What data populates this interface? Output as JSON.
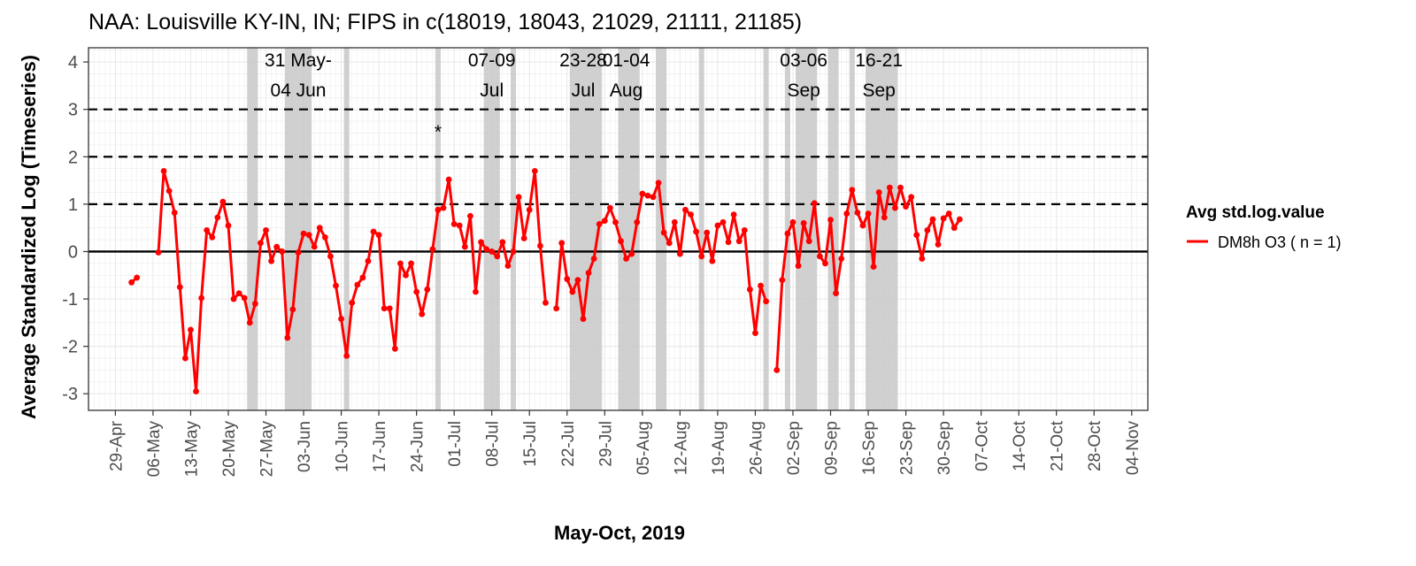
{
  "chart_data": {
    "type": "line",
    "title": "NAA: Louisville KY-IN, IN; FIPS in c(18019, 18043, 21029, 21111, 21185)",
    "xlabel": "May-Oct, 2019",
    "ylabel": "Average Standardized Log (Timeseries)",
    "xlim": [
      "2019-04-24",
      "2019-11-07"
    ],
    "ylim": [
      -3.35,
      4.3
    ],
    "x_ticks": [
      "29-Apr",
      "06-May",
      "13-May",
      "20-May",
      "27-May",
      "03-Jun",
      "10-Jun",
      "17-Jun",
      "24-Jun",
      "01-Jul",
      "08-Jul",
      "15-Jul",
      "22-Jul",
      "29-Jul",
      "05-Aug",
      "12-Aug",
      "19-Aug",
      "26-Aug",
      "02-Sep",
      "09-Sep",
      "16-Sep",
      "23-Sep",
      "30-Sep",
      "07-Oct",
      "14-Oct",
      "21-Oct",
      "28-Oct",
      "04-Nov"
    ],
    "x_tick_dates": [
      "2019-04-29",
      "2019-05-06",
      "2019-05-13",
      "2019-05-20",
      "2019-05-27",
      "2019-06-03",
      "2019-06-10",
      "2019-06-17",
      "2019-06-24",
      "2019-07-01",
      "2019-07-08",
      "2019-07-15",
      "2019-07-22",
      "2019-07-29",
      "2019-08-05",
      "2019-08-12",
      "2019-08-19",
      "2019-08-26",
      "2019-09-02",
      "2019-09-09",
      "2019-09-16",
      "2019-09-23",
      "2019-09-30",
      "2019-10-07",
      "2019-10-14",
      "2019-10-21",
      "2019-10-28",
      "2019-11-04"
    ],
    "y_ticks": [
      4,
      3,
      2,
      1,
      0,
      -1,
      -2,
      -3
    ],
    "grid": true,
    "reference_lines": {
      "dashed": [
        1,
        2,
        3
      ],
      "solid": [
        0
      ]
    },
    "shaded_periods": [
      [
        "2019-05-24",
        "2019-05-25"
      ],
      [
        "2019-05-31",
        "2019-06-04"
      ],
      [
        "2019-06-11",
        "2019-06-11"
      ],
      [
        "2019-06-28",
        "2019-06-28"
      ],
      [
        "2019-07-07",
        "2019-07-09"
      ],
      [
        "2019-07-12",
        "2019-07-12"
      ],
      [
        "2019-07-23",
        "2019-07-28"
      ],
      [
        "2019-08-01",
        "2019-08-04"
      ],
      [
        "2019-08-08",
        "2019-08-09"
      ],
      [
        "2019-08-16",
        "2019-08-16"
      ],
      [
        "2019-08-28",
        "2019-08-28"
      ],
      [
        "2019-09-01",
        "2019-09-01"
      ],
      [
        "2019-09-03",
        "2019-09-06"
      ],
      [
        "2019-09-09",
        "2019-09-10"
      ],
      [
        "2019-09-13",
        "2019-09-13"
      ],
      [
        "2019-09-16",
        "2019-09-21"
      ]
    ],
    "annotations": [
      {
        "date": "2019-06-02",
        "lines": [
          "31 May-",
          "04 Jun"
        ]
      },
      {
        "date": "2019-07-08",
        "lines": [
          "07-09",
          "Jul"
        ]
      },
      {
        "date": "2019-07-25",
        "lines": [
          "23-28",
          "Jul"
        ]
      },
      {
        "date": "2019-08-02",
        "lines": [
          "01-04",
          "Aug"
        ]
      },
      {
        "date": "2019-09-04",
        "lines": [
          "03-06",
          "Sep"
        ]
      },
      {
        "date": "2019-09-18",
        "lines": [
          "16-21",
          "Sep"
        ]
      }
    ],
    "markers": [
      {
        "date": "2019-06-28",
        "y": 2.55,
        "text": "*"
      }
    ],
    "legend": {
      "title": "Avg std.log.value",
      "position": "right"
    },
    "series": [
      {
        "name": "DM8h O3 ( n = 1)",
        "color": "#ff0000",
        "start_date": "2019-05-02",
        "values": [
          -0.65,
          -0.55,
          null,
          null,
          null,
          -0.02,
          1.7,
          1.28,
          0.82,
          -0.75,
          -2.25,
          -1.65,
          -2.95,
          -0.98,
          0.45,
          0.3,
          0.72,
          1.05,
          0.55,
          -1.0,
          -0.88,
          -0.98,
          -1.5,
          -1.1,
          0.18,
          0.45,
          -0.2,
          0.1,
          0.0,
          -1.82,
          -1.22,
          -0.02,
          0.38,
          0.35,
          0.1,
          0.5,
          0.3,
          -0.1,
          -0.72,
          -1.42,
          -2.2,
          -1.08,
          -0.7,
          -0.55,
          -0.2,
          0.42,
          0.35,
          -1.2,
          -1.2,
          -2.05,
          -0.25,
          -0.5,
          -0.25,
          -0.85,
          -1.32,
          -0.8,
          0.05,
          0.88,
          0.92,
          1.52,
          0.58,
          0.55,
          0.1,
          0.75,
          -0.85,
          0.2,
          0.05,
          0.0,
          -0.1,
          0.2,
          -0.3,
          0.0,
          1.15,
          0.28,
          0.88,
          1.7,
          0.12,
          -1.08,
          null,
          -1.2,
          0.18,
          -0.58,
          -0.85,
          -0.6,
          -1.42,
          -0.45,
          -0.15,
          0.58,
          0.65,
          0.92,
          0.62,
          0.22,
          -0.15,
          -0.05,
          0.62,
          1.22,
          1.18,
          1.15,
          1.45,
          0.4,
          0.18,
          0.62,
          -0.05,
          0.88,
          0.78,
          0.42,
          -0.1,
          0.4,
          -0.2,
          0.55,
          0.62,
          0.2,
          0.78,
          0.22,
          0.45,
          -0.8,
          -1.72,
          -0.72,
          -1.05,
          null,
          -2.5,
          -0.6,
          0.38,
          0.62,
          -0.3,
          0.6,
          0.22,
          1.02,
          -0.1,
          -0.25,
          0.67,
          -0.88,
          -0.15,
          0.8,
          1.3,
          0.82,
          0.55,
          0.8,
          -0.32,
          1.25,
          0.72,
          1.35,
          0.92,
          1.35,
          0.95,
          1.15,
          0.35,
          -0.15,
          0.45,
          0.68,
          0.15,
          0.7,
          0.8,
          0.5,
          0.68
        ]
      }
    ]
  }
}
